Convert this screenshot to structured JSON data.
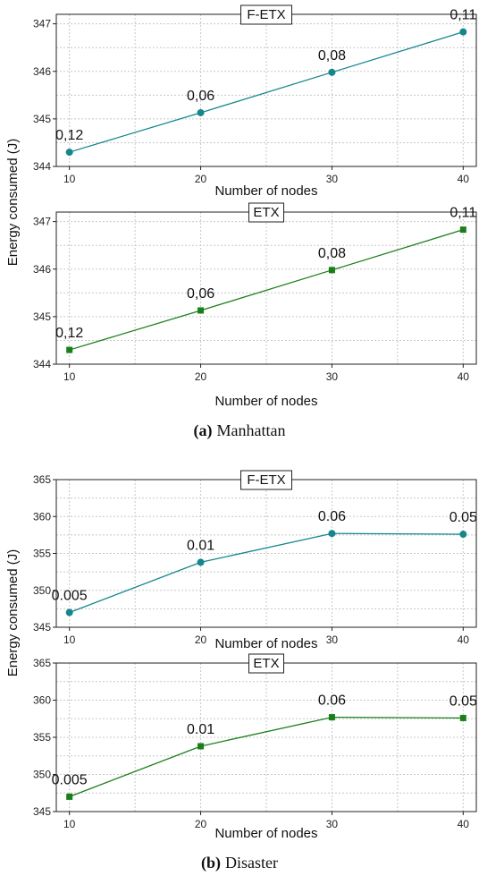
{
  "figure": {
    "ylabel_top": "Energy consumed (J)",
    "ylabel_bottom": "Energy consumed (J)",
    "caption_a_letter": "(a)",
    "caption_a_text": "Manhattan",
    "caption_b_letter": "(b)",
    "caption_b_text": "Disaster"
  },
  "chart_data": [
    {
      "type": "line",
      "title": "F-ETX",
      "xlabel": "Number of nodes",
      "x": [
        10,
        20,
        30,
        40
      ],
      "series": [
        {
          "values": [
            344.3,
            345.13,
            345.98,
            346.83
          ],
          "color": "#14868c",
          "marker": "circle"
        }
      ],
      "data_labels": [
        "0,12",
        "0,06",
        "0,08",
        "0,11"
      ],
      "xticks": [
        "10",
        "20",
        "30",
        "40"
      ],
      "yticks": [
        "344",
        "345",
        "346",
        "347"
      ],
      "xlim": [
        9,
        41
      ],
      "ylim": [
        344,
        347.2
      ],
      "grid": true
    },
    {
      "type": "line",
      "title": "ETX",
      "xlabel": "Number of nodes",
      "x": [
        10,
        20,
        30,
        40
      ],
      "series": [
        {
          "values": [
            344.3,
            345.13,
            345.98,
            346.83
          ],
          "color": "#1a7f1a",
          "marker": "square"
        }
      ],
      "data_labels": [
        "0,12",
        "0,06",
        "0,08",
        "0,11"
      ],
      "xticks": [
        "10",
        "20",
        "30",
        "40"
      ],
      "yticks": [
        "344",
        "345",
        "346",
        "347"
      ],
      "xlim": [
        9,
        41
      ],
      "ylim": [
        344,
        347.2
      ],
      "grid": true
    },
    {
      "type": "line",
      "title": "F-ETX",
      "xlabel": "Number of nodes",
      "x": [
        10,
        20,
        30,
        40
      ],
      "series": [
        {
          "values": [
            347.0,
            353.8,
            357.7,
            357.6
          ],
          "color": "#14868c",
          "marker": "circle"
        }
      ],
      "data_labels": [
        "0.005",
        "0.01",
        "0.06",
        "0.05"
      ],
      "xticks": [
        "10",
        "20",
        "30",
        "40"
      ],
      "yticks": [
        "345",
        "350",
        "355",
        "360",
        "365"
      ],
      "xlim": [
        9,
        41
      ],
      "ylim": [
        345,
        365
      ],
      "grid": true
    },
    {
      "type": "line",
      "title": "ETX",
      "xlabel": "Number of nodes",
      "x": [
        10,
        20,
        30,
        40
      ],
      "series": [
        {
          "values": [
            347.0,
            353.8,
            357.7,
            357.6
          ],
          "color": "#1a7f1a",
          "marker": "square"
        }
      ],
      "data_labels": [
        "0.005",
        "0.01",
        "0.06",
        "0.05"
      ],
      "xticks": [
        "10",
        "20",
        "30",
        "40"
      ],
      "yticks": [
        "345",
        "350",
        "355",
        "360",
        "365"
      ],
      "xlim": [
        9,
        41
      ],
      "ylim": [
        345,
        365
      ],
      "grid": true
    }
  ]
}
